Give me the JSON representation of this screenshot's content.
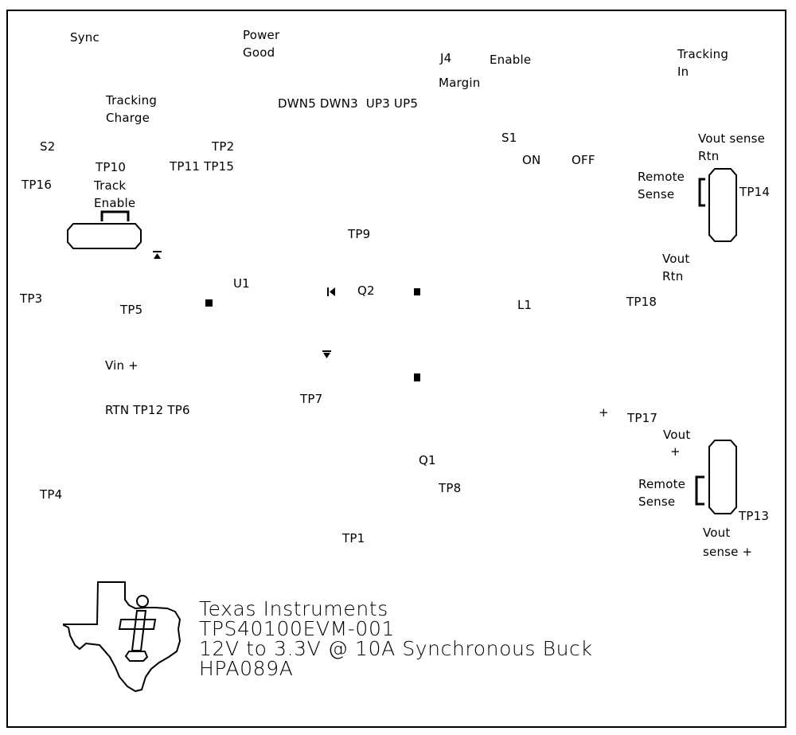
{
  "labels": {
    "sync": "Sync",
    "power": "Power",
    "good": "Good",
    "tracking_1": "Tracking",
    "charge": "Charge",
    "margin_jumpers": "DWN5 DWN3  UP3 UP5",
    "j4": "J4",
    "enable_top": "Enable",
    "margin": "Margin",
    "tracking_2": "Tracking",
    "in": "In",
    "s2": "S2",
    "tp2": "TP2",
    "tp10": "TP10",
    "tp11_tp15": "TP11 TP15",
    "tp16": "TP16",
    "track": "Track",
    "enable_left": "Enable",
    "s1": "S1",
    "on": "ON",
    "off": "OFF",
    "vout_sense": "Vout sense",
    "rtn_1": "Rtn",
    "remote_1": "Remote",
    "sense_1": "Sense",
    "tp14": "TP14",
    "tp9": "TP9",
    "vout_1": "Vout",
    "rtn_2": "Rtn",
    "u1": "U1",
    "q2": "Q2",
    "tp3": "TP3",
    "tp5": "TP5",
    "l1": "L1",
    "tp18": "TP18",
    "vin_plus": "Vin +",
    "tp7": "TP7",
    "rtn_tp12_tp6": "RTN TP12 TP6",
    "plus_1": "+",
    "tp17": "TP17",
    "vout_2": "Vout",
    "plus_2": "+",
    "q1": "Q1",
    "remote_2": "Remote",
    "sense_2": "Sense",
    "tp8": "TP8",
    "tp4": "TP4",
    "tp13": "TP13",
    "tp1": "TP1",
    "vout_3": "Vout",
    "sense_plus": "sense +"
  },
  "title_block": {
    "line1": "Texas Instruments",
    "line2": "TPS40100EVM-001",
    "line3": "12V to 3.3V @ 10A Synchronous Buck",
    "line4": "HPA089A"
  },
  "logo": "Texas Instruments logo (ti)",
  "colors": {
    "ink": "#000000",
    "background": "#ffffff"
  }
}
